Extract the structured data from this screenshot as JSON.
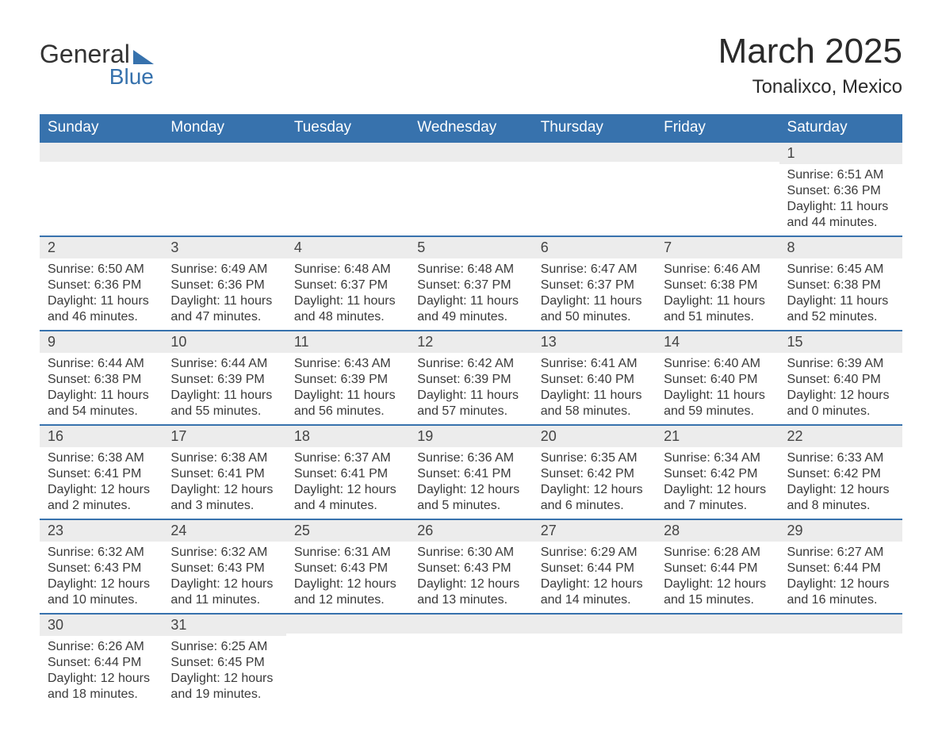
{
  "logo": {
    "word1": "General",
    "word2": "Blue"
  },
  "title": {
    "month": "March 2025",
    "location": "Tonalixco, Mexico"
  },
  "colors": {
    "header_bg": "#3772ad",
    "header_text": "#ffffff",
    "stripe_bg": "#ececec",
    "body_text": "#3a3a3a",
    "rule": "#3772ad"
  },
  "dayNames": [
    "Sunday",
    "Monday",
    "Tuesday",
    "Wednesday",
    "Thursday",
    "Friday",
    "Saturday"
  ],
  "weeks": [
    [
      null,
      null,
      null,
      null,
      null,
      null,
      {
        "n": "1",
        "sr": "Sunrise: 6:51 AM",
        "ss": "Sunset: 6:36 PM",
        "dl": "Daylight: 11 hours and 44 minutes."
      }
    ],
    [
      {
        "n": "2",
        "sr": "Sunrise: 6:50 AM",
        "ss": "Sunset: 6:36 PM",
        "dl": "Daylight: 11 hours and 46 minutes."
      },
      {
        "n": "3",
        "sr": "Sunrise: 6:49 AM",
        "ss": "Sunset: 6:36 PM",
        "dl": "Daylight: 11 hours and 47 minutes."
      },
      {
        "n": "4",
        "sr": "Sunrise: 6:48 AM",
        "ss": "Sunset: 6:37 PM",
        "dl": "Daylight: 11 hours and 48 minutes."
      },
      {
        "n": "5",
        "sr": "Sunrise: 6:48 AM",
        "ss": "Sunset: 6:37 PM",
        "dl": "Daylight: 11 hours and 49 minutes."
      },
      {
        "n": "6",
        "sr": "Sunrise: 6:47 AM",
        "ss": "Sunset: 6:37 PM",
        "dl": "Daylight: 11 hours and 50 minutes."
      },
      {
        "n": "7",
        "sr": "Sunrise: 6:46 AM",
        "ss": "Sunset: 6:38 PM",
        "dl": "Daylight: 11 hours and 51 minutes."
      },
      {
        "n": "8",
        "sr": "Sunrise: 6:45 AM",
        "ss": "Sunset: 6:38 PM",
        "dl": "Daylight: 11 hours and 52 minutes."
      }
    ],
    [
      {
        "n": "9",
        "sr": "Sunrise: 6:44 AM",
        "ss": "Sunset: 6:38 PM",
        "dl": "Daylight: 11 hours and 54 minutes."
      },
      {
        "n": "10",
        "sr": "Sunrise: 6:44 AM",
        "ss": "Sunset: 6:39 PM",
        "dl": "Daylight: 11 hours and 55 minutes."
      },
      {
        "n": "11",
        "sr": "Sunrise: 6:43 AM",
        "ss": "Sunset: 6:39 PM",
        "dl": "Daylight: 11 hours and 56 minutes."
      },
      {
        "n": "12",
        "sr": "Sunrise: 6:42 AM",
        "ss": "Sunset: 6:39 PM",
        "dl": "Daylight: 11 hours and 57 minutes."
      },
      {
        "n": "13",
        "sr": "Sunrise: 6:41 AM",
        "ss": "Sunset: 6:40 PM",
        "dl": "Daylight: 11 hours and 58 minutes."
      },
      {
        "n": "14",
        "sr": "Sunrise: 6:40 AM",
        "ss": "Sunset: 6:40 PM",
        "dl": "Daylight: 11 hours and 59 minutes."
      },
      {
        "n": "15",
        "sr": "Sunrise: 6:39 AM",
        "ss": "Sunset: 6:40 PM",
        "dl": "Daylight: 12 hours and 0 minutes."
      }
    ],
    [
      {
        "n": "16",
        "sr": "Sunrise: 6:38 AM",
        "ss": "Sunset: 6:41 PM",
        "dl": "Daylight: 12 hours and 2 minutes."
      },
      {
        "n": "17",
        "sr": "Sunrise: 6:38 AM",
        "ss": "Sunset: 6:41 PM",
        "dl": "Daylight: 12 hours and 3 minutes."
      },
      {
        "n": "18",
        "sr": "Sunrise: 6:37 AM",
        "ss": "Sunset: 6:41 PM",
        "dl": "Daylight: 12 hours and 4 minutes."
      },
      {
        "n": "19",
        "sr": "Sunrise: 6:36 AM",
        "ss": "Sunset: 6:41 PM",
        "dl": "Daylight: 12 hours and 5 minutes."
      },
      {
        "n": "20",
        "sr": "Sunrise: 6:35 AM",
        "ss": "Sunset: 6:42 PM",
        "dl": "Daylight: 12 hours and 6 minutes."
      },
      {
        "n": "21",
        "sr": "Sunrise: 6:34 AM",
        "ss": "Sunset: 6:42 PM",
        "dl": "Daylight: 12 hours and 7 minutes."
      },
      {
        "n": "22",
        "sr": "Sunrise: 6:33 AM",
        "ss": "Sunset: 6:42 PM",
        "dl": "Daylight: 12 hours and 8 minutes."
      }
    ],
    [
      {
        "n": "23",
        "sr": "Sunrise: 6:32 AM",
        "ss": "Sunset: 6:43 PM",
        "dl": "Daylight: 12 hours and 10 minutes."
      },
      {
        "n": "24",
        "sr": "Sunrise: 6:32 AM",
        "ss": "Sunset: 6:43 PM",
        "dl": "Daylight: 12 hours and 11 minutes."
      },
      {
        "n": "25",
        "sr": "Sunrise: 6:31 AM",
        "ss": "Sunset: 6:43 PM",
        "dl": "Daylight: 12 hours and 12 minutes."
      },
      {
        "n": "26",
        "sr": "Sunrise: 6:30 AM",
        "ss": "Sunset: 6:43 PM",
        "dl": "Daylight: 12 hours and 13 minutes."
      },
      {
        "n": "27",
        "sr": "Sunrise: 6:29 AM",
        "ss": "Sunset: 6:44 PM",
        "dl": "Daylight: 12 hours and 14 minutes."
      },
      {
        "n": "28",
        "sr": "Sunrise: 6:28 AM",
        "ss": "Sunset: 6:44 PM",
        "dl": "Daylight: 12 hours and 15 minutes."
      },
      {
        "n": "29",
        "sr": "Sunrise: 6:27 AM",
        "ss": "Sunset: 6:44 PM",
        "dl": "Daylight: 12 hours and 16 minutes."
      }
    ],
    [
      {
        "n": "30",
        "sr": "Sunrise: 6:26 AM",
        "ss": "Sunset: 6:44 PM",
        "dl": "Daylight: 12 hours and 18 minutes."
      },
      {
        "n": "31",
        "sr": "Sunrise: 6:25 AM",
        "ss": "Sunset: 6:45 PM",
        "dl": "Daylight: 12 hours and 19 minutes."
      },
      null,
      null,
      null,
      null,
      null
    ]
  ]
}
